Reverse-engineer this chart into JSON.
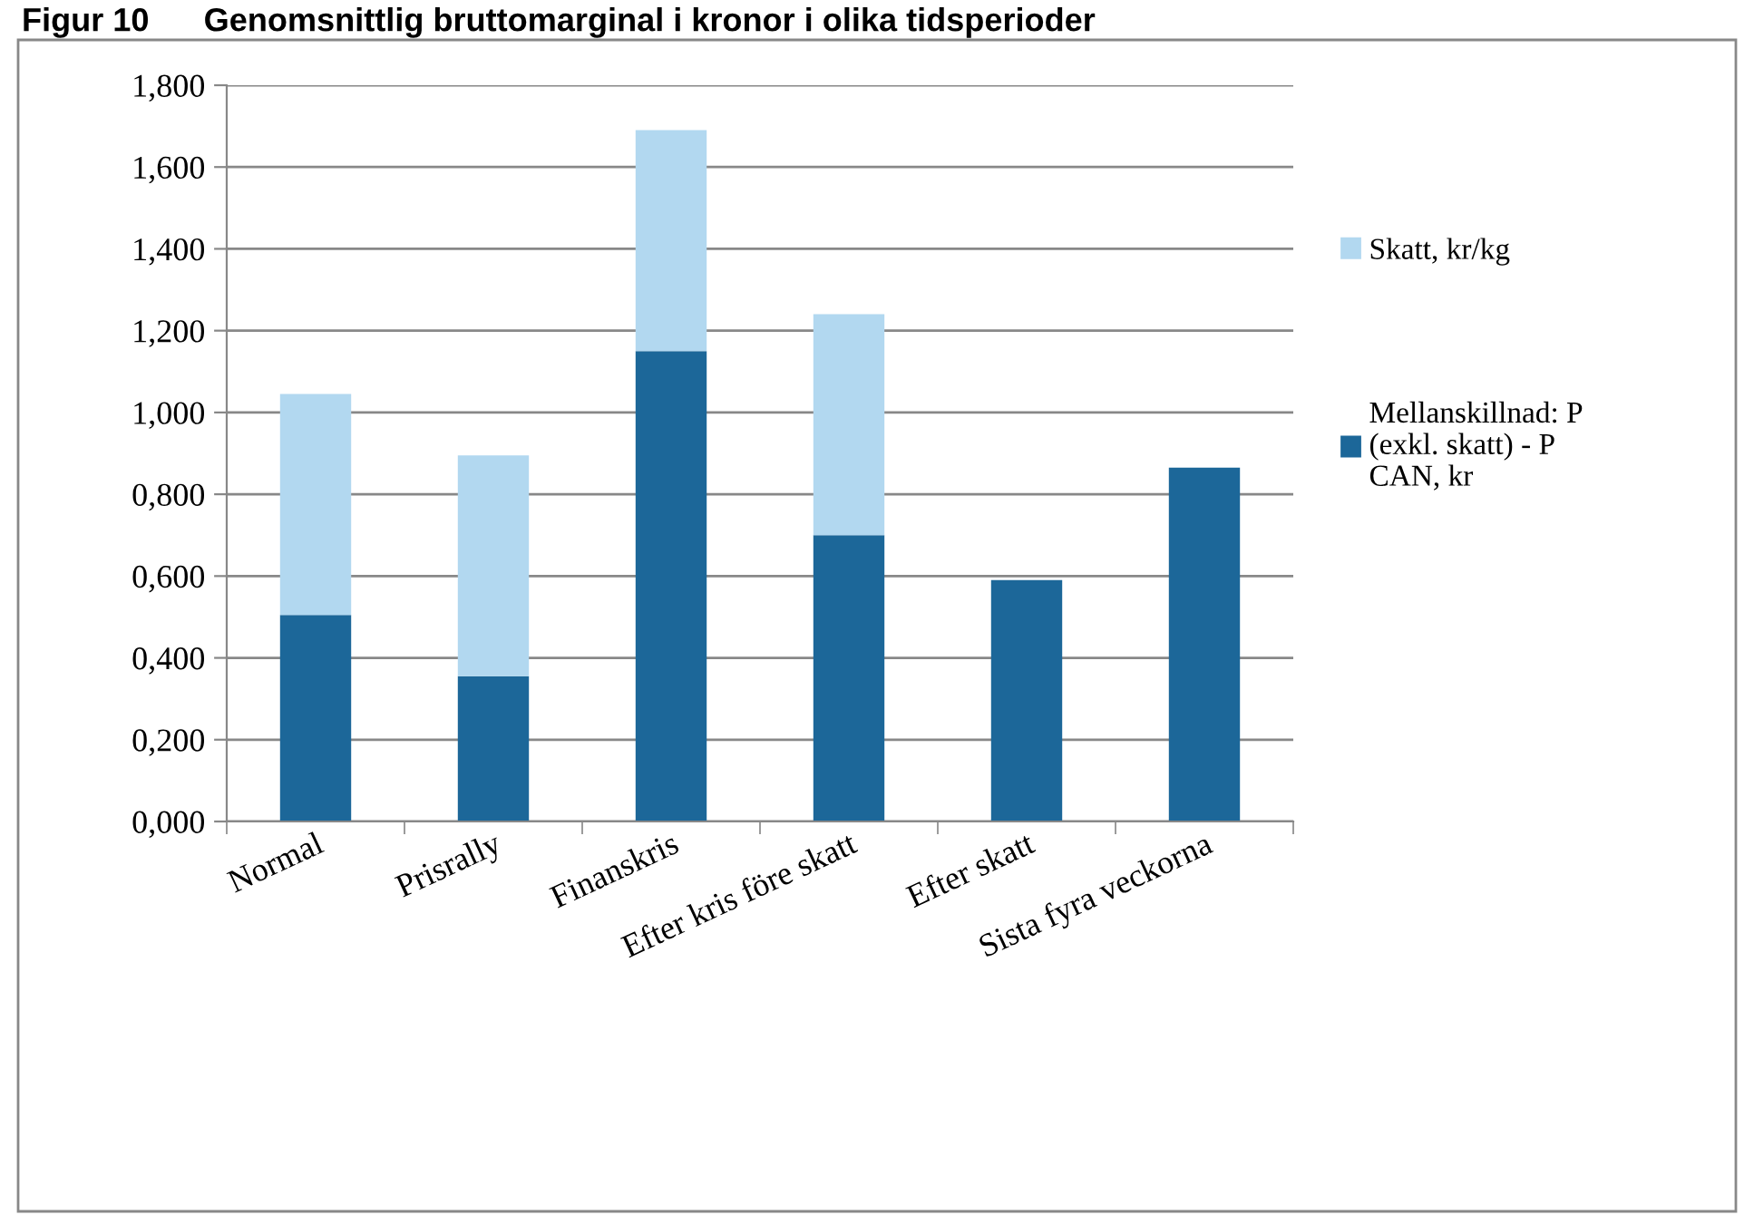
{
  "chart_data": {
    "type": "bar",
    "title": "Figur 10      Genomsnittlig bruttomarginal i kronor i olika tidsperioder",
    "categories": [
      "Normal",
      "Prisrally",
      "Finanskris",
      "Efter kris före skatt",
      "Efter skatt",
      "Sista fyra veckorna"
    ],
    "stacked": true,
    "series": [
      {
        "name": "Mellanskillnad: P\n(exkl. skatt) - P\nCAN, kr",
        "color": "#1c6799",
        "values": [
          0.505,
          0.355,
          1.15,
          0.7,
          0.59,
          0.865
        ]
      },
      {
        "name": "Skatt, kr/kg",
        "color": "#b2d8f0",
        "values": [
          0.54,
          0.54,
          0.54,
          0.54,
          null,
          null
        ]
      }
    ],
    "ylim": [
      0,
      1.8
    ],
    "yticks": [
      {
        "value": 0,
        "label": "0,000"
      },
      {
        "value": 0.2,
        "label": "0,200"
      },
      {
        "value": 0.4,
        "label": "0,400"
      },
      {
        "value": 0.6,
        "label": "0,600"
      },
      {
        "value": 0.8,
        "label": "0,800"
      },
      {
        "value": 1.0,
        "label": "1,000"
      },
      {
        "value": 1.2,
        "label": "1,200"
      },
      {
        "value": 1.4,
        "label": "1,400"
      },
      {
        "value": 1.6,
        "label": "1,600"
      },
      {
        "value": 1.8,
        "label": "1,800"
      }
    ],
    "grid": "y",
    "legend": "right"
  }
}
